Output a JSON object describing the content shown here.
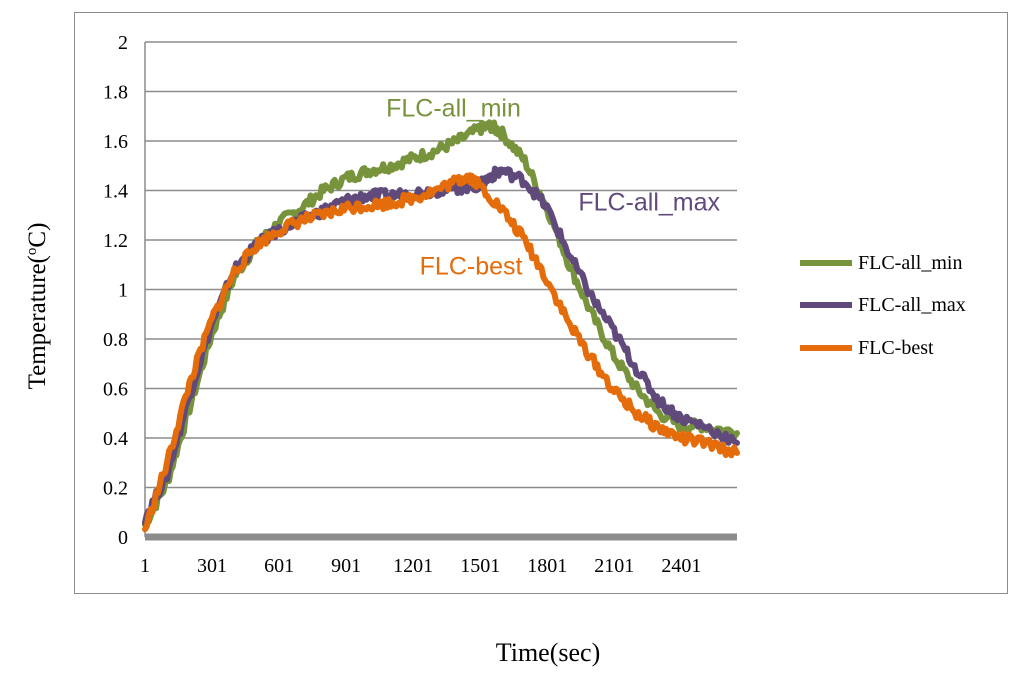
{
  "chart_data": {
    "type": "line",
    "title": "",
    "xlabel": "Time(sec)",
    "ylabel": "Temperature(°C)",
    "ylabel_base": "Temperature(",
    "ylabel_sup": "o",
    "ylabel_tail": "C)",
    "xlim": [
      1,
      2650
    ],
    "ylim": [
      0,
      2
    ],
    "x_tick_labels": [
      "1",
      "301",
      "601",
      "901",
      "1201",
      "1501",
      "1801",
      "2101",
      "2401"
    ],
    "y_tick_labels": [
      "0",
      "0.2",
      "0.4",
      "0.6",
      "0.8",
      "1",
      "1.2",
      "1.4",
      "1.6",
      "1.8",
      "2"
    ],
    "grid": true,
    "legend_position": "right",
    "series": [
      {
        "name": "FLC-all_min",
        "color": "#77933c",
        "x": [
          1,
          100,
          200,
          300,
          400,
          500,
          600,
          700,
          800,
          900,
          1000,
          1100,
          1200,
          1300,
          1400,
          1500,
          1550,
          1600,
          1700,
          1800,
          1900,
          2000,
          2100,
          2200,
          2300,
          2400,
          2500,
          2650
        ],
        "y": [
          0.05,
          0.22,
          0.52,
          0.82,
          1.05,
          1.18,
          1.27,
          1.33,
          1.4,
          1.45,
          1.48,
          1.5,
          1.53,
          1.56,
          1.6,
          1.65,
          1.66,
          1.63,
          1.52,
          1.33,
          1.1,
          0.9,
          0.73,
          0.6,
          0.5,
          0.45,
          0.45,
          0.42
        ]
      },
      {
        "name": "FLC-all_max",
        "color": "#604a7b",
        "x": [
          1,
          100,
          200,
          300,
          400,
          500,
          600,
          700,
          800,
          900,
          1000,
          1100,
          1200,
          1300,
          1400,
          1500,
          1550,
          1600,
          1700,
          1800,
          1900,
          2000,
          2100,
          2200,
          2300,
          2400,
          2500,
          2650
        ],
        "y": [
          0.08,
          0.25,
          0.57,
          0.86,
          1.08,
          1.18,
          1.24,
          1.28,
          1.32,
          1.36,
          1.38,
          1.38,
          1.39,
          1.4,
          1.41,
          1.42,
          1.46,
          1.48,
          1.44,
          1.33,
          1.14,
          0.97,
          0.83,
          0.68,
          0.55,
          0.48,
          0.45,
          0.38
        ]
      },
      {
        "name": "FLC-best",
        "color": "#e46c0a",
        "x": [
          1,
          100,
          200,
          300,
          400,
          500,
          600,
          700,
          800,
          900,
          1000,
          1100,
          1200,
          1300,
          1400,
          1450,
          1500,
          1600,
          1700,
          1800,
          1900,
          2000,
          2100,
          2200,
          2300,
          2400,
          2500,
          2650
        ],
        "y": [
          0.03,
          0.3,
          0.62,
          0.88,
          1.07,
          1.18,
          1.24,
          1.28,
          1.3,
          1.33,
          1.34,
          1.35,
          1.37,
          1.4,
          1.44,
          1.46,
          1.42,
          1.32,
          1.2,
          1.04,
          0.86,
          0.72,
          0.59,
          0.5,
          0.44,
          0.4,
          0.38,
          0.34
        ]
      }
    ],
    "annotations": [
      {
        "text": "FLC-all_min",
        "x": 1080,
        "y": 1.7,
        "color": "#77933c"
      },
      {
        "text": "FLC-all_max",
        "x": 1940,
        "y": 1.32,
        "color": "#604a7b"
      },
      {
        "text": "FLC-best",
        "x": 1230,
        "y": 1.06,
        "color": "#e46c0a"
      }
    ]
  }
}
